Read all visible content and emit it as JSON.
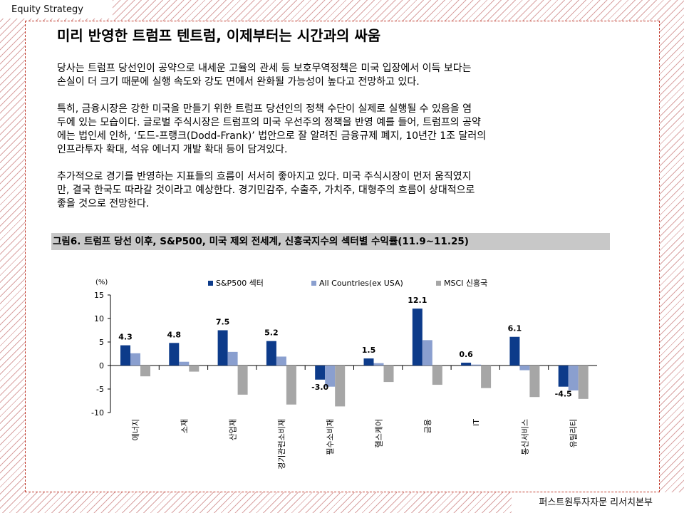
{
  "header": {
    "section": "Equity Strategy"
  },
  "title": "미리 반영한 트럼프 텐트럼, 이제부터는 시간과의 싸움",
  "paragraphs": [
    "당사는 트럼프 당선인이 공약으로 내세운 고율의 관세 등 보호무역정책은 미국 입장에서 이득 보다는\n손실이 더 크기 때문에 실행 속도와 강도 면에서 완화될 가능성이 높다고 전망하고 있다.",
    "특히, 금융시장은 강한 미국을 만들기 위한 트럼프 당선인의 정책 수단이 실제로 실행될 수 있음을 염\n두에 있는 모습이다. 글로벌 주식시장은 트럼프의 미국 우선주의 정책을 반영 예를 들어, 트럼프의 공약\n에는 법인세 인하, ‘도드-프랭크(Dodd-Frank)’ 법안으로 잘 알려진 금융규제 폐지, 10년간 1조 달러의\n인프라투자 확대, 석유 에너지 개발 확대 등이 담겨있다.",
    "추가적으로 경기를 반영하는 지표들의 흐름이 서서히 좋아지고 있다. 미국 주식시장이 먼저 움직였지\n만, 결국 한국도 따라갈 것이라고 예상한다. 경기민감주, 수출주, 가치주, 대형주의 흐름이 상대적으로\n좋을 것으로 전망한다."
  ],
  "figure": {
    "title": "그림6. 트럼프 당선 이후, S&P500, 미국 제외 전세계, 신흥국지수의 섹터별 수익률(11.9~11.25)"
  },
  "chart_data": {
    "type": "bar",
    "unit_label": "(%)",
    "categories": [
      "에너지",
      "소재",
      "산업재",
      "경기관련소비재",
      "필수소비재",
      "헬스케어",
      "금융",
      "IT",
      "통신서비스",
      "유틸리티"
    ],
    "series": [
      {
        "name": "S&P500 섹터",
        "color": "#0d3b8a",
        "values": [
          4.3,
          4.8,
          7.5,
          5.2,
          -3.0,
          1.5,
          12.1,
          0.6,
          6.1,
          -4.5
        ]
      },
      {
        "name": "All Countries(ex USA)",
        "color": "#8a9fcf",
        "values": [
          2.6,
          0.8,
          2.9,
          1.9,
          -4.5,
          0.5,
          5.4,
          0.2,
          -1.0,
          -5.3
        ]
      },
      {
        "name": "MSCI 신흥국",
        "color": "#a6a6a6",
        "values": [
          -2.3,
          -1.3,
          -6.2,
          -8.3,
          -8.7,
          -3.5,
          -4.1,
          -4.8,
          -6.7,
          -7.1
        ]
      }
    ],
    "data_labels": [
      "4.3",
      "4.8",
      "7.5",
      "5.2",
      "-3.0",
      "1.5",
      "12.1",
      "0.6",
      "6.1",
      "-4.5"
    ],
    "ylim": [
      -10,
      15
    ],
    "yticks": [
      15,
      10,
      5,
      0,
      -5,
      -10
    ],
    "legend_position": "top"
  },
  "footer": {
    "source": "퍼스트원투자자문 리서치본부"
  }
}
